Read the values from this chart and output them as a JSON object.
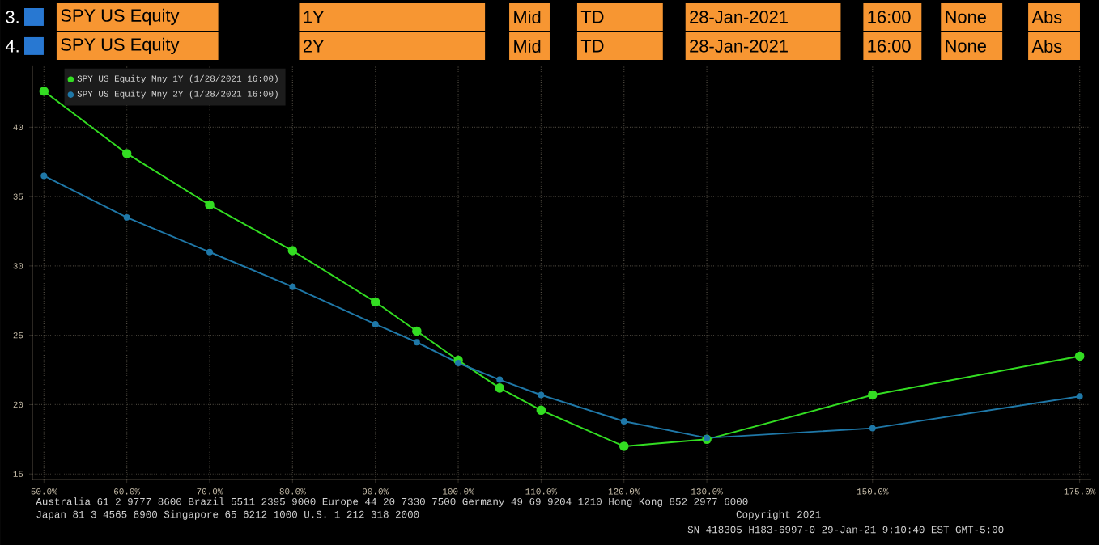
{
  "chart_data": {
    "type": "line",
    "x": [
      50,
      60,
      70,
      80,
      90,
      95,
      100,
      105,
      110,
      120,
      130,
      150,
      175
    ],
    "series": [
      {
        "name": "SPY US Equity Mny 1Y (1/28/2021 16:00)",
        "color": "#33dd22",
        "values": [
          42.6,
          38.1,
          34.4,
          31.1,
          27.4,
          25.3,
          23.2,
          21.2,
          19.6,
          17.0,
          17.5,
          20.7,
          23.5
        ]
      },
      {
        "name": "SPY US Equity Mny 2Y (1/28/2021 16:00)",
        "color": "#1f78a8",
        "values": [
          36.5,
          33.5,
          31.0,
          28.5,
          25.8,
          24.5,
          23.0,
          21.8,
          20.7,
          18.8,
          17.6,
          18.3,
          20.6
        ]
      }
    ],
    "xlim": [
      48.6,
      176.4
    ],
    "ylim": [
      14.6,
      44.4
    ],
    "xticks": [
      {
        "value": 50,
        "label": "50.0%"
      },
      {
        "value": 60,
        "label": "60.0%"
      },
      {
        "value": 70,
        "label": "70.0%"
      },
      {
        "value": 80,
        "label": "80.0%"
      },
      {
        "value": 90,
        "label": "90.0%"
      },
      {
        "value": 100,
        "label": "100.0%"
      },
      {
        "value": 110,
        "label": "110.0%"
      },
      {
        "value": 120,
        "label": "120.0%"
      },
      {
        "value": 130,
        "label": "130.0%"
      },
      {
        "value": 150,
        "label": "150.0%"
      },
      {
        "value": 175,
        "label": "175.0%"
      }
    ],
    "yticks": [
      15,
      20,
      25,
      30,
      35,
      40
    ],
    "grid": true,
    "legend": "top left",
    "marker": "circle",
    "line_style": "solid",
    "annotations": [
      "3.",
      "SPY US Equity",
      "1Y",
      "Mid",
      "TD",
      "28-Jan-2021",
      "16:00",
      "None",
      "Abs",
      "4.",
      "SPY US Equity",
      "2Y",
      "Mid",
      "TD",
      "28-Jan-2021",
      "16:00",
      "None",
      "Abs",
      "Australia 61 2 9777 8600 Brazil 5511 2395 9000 Europe 44 20 7330 7500 Germany 49 69 9204 1210 Hong Kong 852 2977 6000",
      "Japan 81 3 4565 8900 Singapore 65 6212 1000 U.S. 1 212 318 2000",
      "Copyright 2021",
      "SN 418305 H183-6997-0 29-Jan-21 9:10:40 EST GMT-5:00"
    ]
  }
}
